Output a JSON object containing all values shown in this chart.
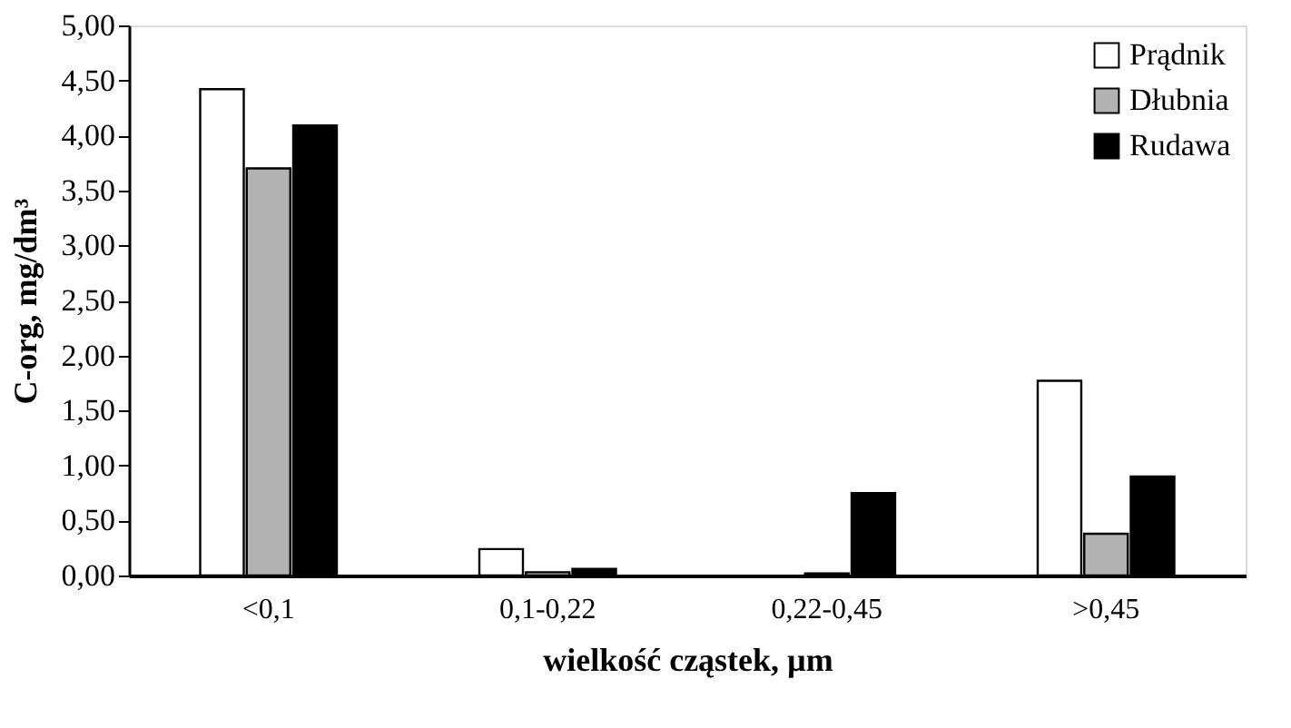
{
  "chart_data": {
    "type": "bar",
    "xlabel": "wielkość cząstek, µm",
    "ylabel": "C-org, mg/dm³",
    "categories": [
      "<0,1",
      "0,1-0,22",
      "0,22-0,45",
      ">0,45"
    ],
    "series": [
      {
        "name": "Prądnik",
        "color": "#ffffff",
        "values": [
          4.42,
          0.24,
          null,
          1.77
        ]
      },
      {
        "name": "Dłubnia",
        "color": "#b3b3b3",
        "values": [
          3.7,
          0.03,
          0.02,
          0.38
        ]
      },
      {
        "name": "Rudawa",
        "color": "#000000",
        "values": [
          4.09,
          0.06,
          0.75,
          0.9
        ]
      }
    ],
    "ylim": [
      0,
      5
    ],
    "yticks": [
      {
        "value": 0,
        "label": "0,00"
      },
      {
        "value": 0.5,
        "label": "0,50"
      },
      {
        "value": 1,
        "label": "1,00"
      },
      {
        "value": 1.5,
        "label": "1,50"
      },
      {
        "value": 2,
        "label": "2,00"
      },
      {
        "value": 2.5,
        "label": "2,50"
      },
      {
        "value": 3,
        "label": "3,00"
      },
      {
        "value": 3.5,
        "label": "3,50"
      },
      {
        "value": 4,
        "label": "4,00"
      },
      {
        "value": 4.5,
        "label": "4,50"
      },
      {
        "value": 5,
        "label": "5,00"
      }
    ],
    "legend": "top right",
    "grid": false
  }
}
